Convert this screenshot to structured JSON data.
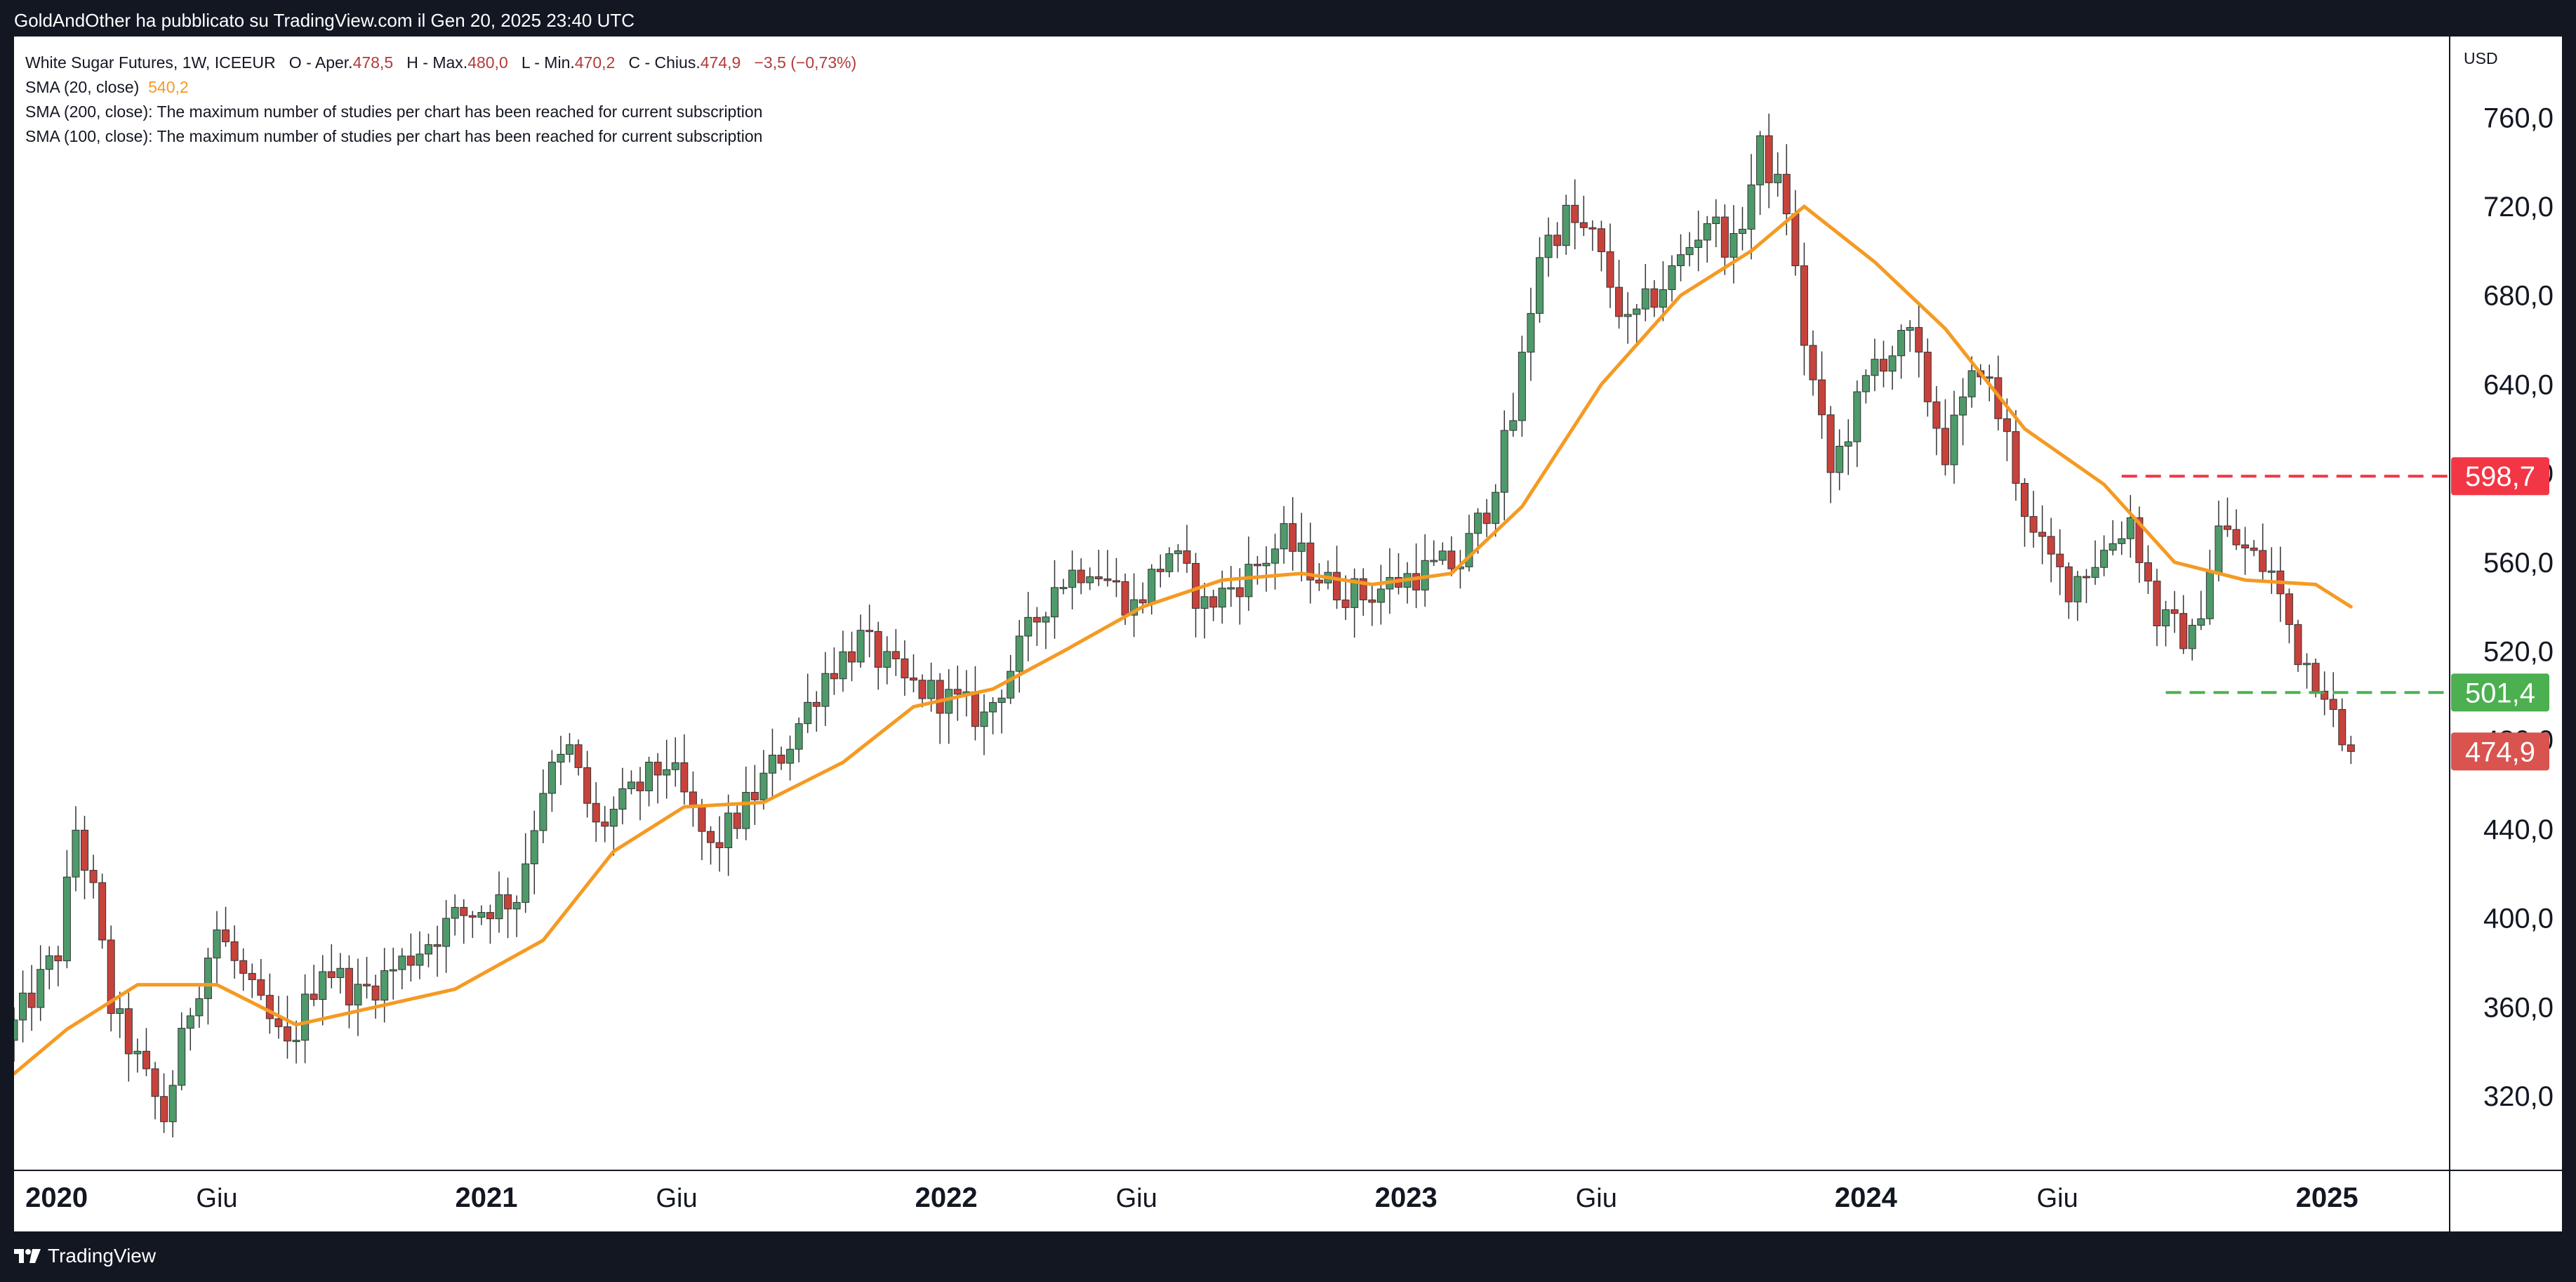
{
  "header": {
    "credit": "GoldAndOther ha pubblicato su TradingView.com il Gen 20, 2025 23:40 UTC"
  },
  "legend": {
    "title": "White Sugar Futures, 1W, ICEEUR",
    "open_label": "O - Aper.",
    "open": "478,5",
    "high_label": "H - Max.",
    "high": "480,0",
    "low_label": "L - Min.",
    "low": "470,2",
    "close_label": "C - Chius.",
    "close": "474,9",
    "change": "−3,5 (−0,73%)",
    "sma20_label": "SMA (20, close)",
    "sma20_value": "540,2",
    "sma200_label": "SMA (200, close):",
    "sma200_msg": "The maximum number of studies per chart has been reached for current subscription",
    "sma100_label": "SMA (100, close):",
    "sma100_msg": "The maximum number of studies per chart has been reached for current subscription"
  },
  "axis": {
    "currency": "USD"
  },
  "footer": {
    "brand": "TradingView"
  },
  "colors": {
    "up": "#4e9a6a",
    "down": "#c8423c",
    "sma": "#f59a23",
    "resistance": "#f23645",
    "support": "#4caf50",
    "last": "#d9534f"
  },
  "chart_data": {
    "type": "candlestick",
    "title": "White Sugar Futures, 1W, ICEEUR",
    "ylim": [
      290,
      780
    ],
    "y_ticks": [
      320,
      360,
      400,
      440,
      480,
      520,
      560,
      600,
      640,
      680,
      720,
      760
    ],
    "y_tick_labels": [
      "320,0",
      "360,0",
      "400,0",
      "440,0",
      "480,0",
      "520,0",
      "560,0",
      "600,0",
      "640,0",
      "680,0",
      "720,0",
      "760,0"
    ],
    "x_range": [
      "2019-12-23",
      "2025-03-31"
    ],
    "x_ticks": [
      {
        "date": "2020-01-01",
        "label": "2020",
        "bold": true
      },
      {
        "date": "2020-06-01",
        "label": "Giu",
        "bold": false
      },
      {
        "date": "2021-01-01",
        "label": "2021",
        "bold": true
      },
      {
        "date": "2021-06-01",
        "label": "Giu",
        "bold": false
      },
      {
        "date": "2022-01-01",
        "label": "2022",
        "bold": true
      },
      {
        "date": "2022-06-01",
        "label": "Giu",
        "bold": false
      },
      {
        "date": "2023-01-01",
        "label": "2023",
        "bold": true
      },
      {
        "date": "2023-06-01",
        "label": "Giu",
        "bold": false
      },
      {
        "date": "2024-01-01",
        "label": "2024",
        "bold": true
      },
      {
        "date": "2024-06-01",
        "label": "Giu",
        "bold": false
      },
      {
        "date": "2025-01-01",
        "label": "2025",
        "bold": true
      }
    ],
    "anchors": [
      [
        "2019-12-23",
        345
      ],
      [
        "2020-02-03",
        385
      ],
      [
        "2020-02-17",
        440
      ],
      [
        "2020-03-02",
        410
      ],
      [
        "2020-03-16",
        360
      ],
      [
        "2020-04-06",
        335
      ],
      [
        "2020-04-27",
        310
      ],
      [
        "2020-05-18",
        360
      ],
      [
        "2020-06-08",
        395
      ],
      [
        "2020-07-06",
        365
      ],
      [
        "2020-08-03",
        340
      ],
      [
        "2020-08-31",
        380
      ],
      [
        "2020-09-28",
        365
      ],
      [
        "2020-11-02",
        380
      ],
      [
        "2020-12-14",
        400
      ],
      [
        "2021-02-01",
        410
      ],
      [
        "2021-02-22",
        460
      ],
      [
        "2021-03-15",
        475
      ],
      [
        "2021-04-05",
        440
      ],
      [
        "2021-05-03",
        455
      ],
      [
        "2021-05-31",
        470
      ],
      [
        "2021-07-05",
        430
      ],
      [
        "2021-08-02",
        450
      ],
      [
        "2021-09-06",
        480
      ],
      [
        "2021-10-04",
        510
      ],
      [
        "2021-11-01",
        525
      ],
      [
        "2021-12-06",
        505
      ],
      [
        "2022-01-03",
        500
      ],
      [
        "2022-02-07",
        490
      ],
      [
        "2022-03-07",
        520
      ],
      [
        "2022-04-04",
        550
      ],
      [
        "2022-05-02",
        560
      ],
      [
        "2022-06-06",
        540
      ],
      [
        "2022-07-04",
        565
      ],
      [
        "2022-08-01",
        540
      ],
      [
        "2022-09-05",
        555
      ],
      [
        "2022-10-03",
        570
      ],
      [
        "2022-11-07",
        550
      ],
      [
        "2022-12-05",
        545
      ],
      [
        "2023-01-16",
        555
      ],
      [
        "2023-02-20",
        560
      ],
      [
        "2023-03-13",
        585
      ],
      [
        "2023-04-03",
        625
      ],
      [
        "2023-04-24",
        700
      ],
      [
        "2023-05-15",
        715
      ],
      [
        "2023-06-05",
        705
      ],
      [
        "2023-07-03",
        665
      ],
      [
        "2023-08-07",
        690
      ],
      [
        "2023-09-04",
        715
      ],
      [
        "2023-09-25",
        700
      ],
      [
        "2023-10-16",
        745
      ],
      [
        "2023-11-06",
        720
      ],
      [
        "2023-11-20",
        660
      ],
      [
        "2023-12-11",
        600
      ],
      [
        "2024-01-15",
        650
      ],
      [
        "2024-02-12",
        660
      ],
      [
        "2024-03-11",
        610
      ],
      [
        "2024-04-08",
        650
      ],
      [
        "2024-04-29",
        615
      ],
      [
        "2024-05-20",
        570
      ],
      [
        "2024-06-17",
        550
      ],
      [
        "2024-07-15",
        565
      ],
      [
        "2024-08-05",
        580
      ],
      [
        "2024-08-26",
        535
      ],
      [
        "2024-09-23",
        525
      ],
      [
        "2024-10-14",
        575
      ],
      [
        "2024-11-04",
        565
      ],
      [
        "2024-11-25",
        555
      ],
      [
        "2024-12-16",
        520
      ],
      [
        "2025-01-06",
        505
      ],
      [
        "2025-01-20",
        475
      ]
    ],
    "sma20": [
      [
        "2019-12-23",
        330
      ],
      [
        "2020-02-03",
        350
      ],
      [
        "2020-03-30",
        370
      ],
      [
        "2020-06-01",
        370
      ],
      [
        "2020-08-03",
        352
      ],
      [
        "2020-10-05",
        360
      ],
      [
        "2020-12-07",
        368
      ],
      [
        "2021-02-15",
        390
      ],
      [
        "2021-04-12",
        430
      ],
      [
        "2021-06-07",
        450
      ],
      [
        "2021-08-09",
        452
      ],
      [
        "2021-10-11",
        470
      ],
      [
        "2021-12-06",
        495
      ],
      [
        "2022-02-07",
        503
      ],
      [
        "2022-04-04",
        520
      ],
      [
        "2022-06-06",
        540
      ],
      [
        "2022-08-08",
        552
      ],
      [
        "2022-10-10",
        555
      ],
      [
        "2022-12-05",
        550
      ],
      [
        "2023-02-06",
        555
      ],
      [
        "2023-04-03",
        585
      ],
      [
        "2023-06-05",
        640
      ],
      [
        "2023-08-07",
        680
      ],
      [
        "2023-10-02",
        700
      ],
      [
        "2023-11-13",
        720
      ],
      [
        "2024-01-08",
        695
      ],
      [
        "2024-03-04",
        665
      ],
      [
        "2024-05-06",
        620
      ],
      [
        "2024-07-08",
        595
      ],
      [
        "2024-09-02",
        560
      ],
      [
        "2024-10-28",
        552
      ],
      [
        "2024-12-23",
        550
      ],
      [
        "2025-01-20",
        540
      ]
    ],
    "levels": [
      {
        "name": "resistance",
        "value": 598.7,
        "label": "598,7",
        "start": "2024-07-22",
        "style": "dashed"
      },
      {
        "name": "support",
        "value": 501.4,
        "label": "501,4",
        "start": "2024-08-26",
        "style": "dashed"
      }
    ],
    "last_price": {
      "value": 474.9,
      "label": "474,9"
    },
    "hidden_tick_label": "480,0"
  }
}
